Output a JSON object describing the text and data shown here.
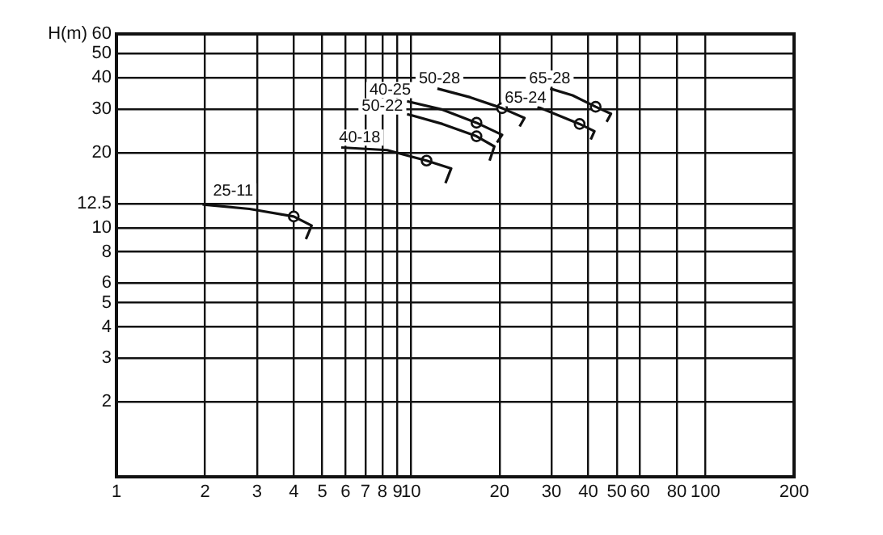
{
  "chart_data": {
    "type": "line",
    "ylabel": "H(m)",
    "log": "xy",
    "grid": true,
    "xlim": [
      1,
      200
    ],
    "xticks": [
      1,
      2,
      3,
      4,
      5,
      6,
      7,
      8,
      9,
      10,
      20,
      30,
      40,
      50,
      60,
      80,
      100,
      200
    ],
    "ylim": [
      1,
      60
    ],
    "yticks": [
      2,
      3,
      4,
      5,
      6,
      8,
      10,
      12.5,
      20,
      30,
      40,
      50,
      60
    ],
    "series": [
      {
        "type": "line",
        "color": "#111111",
        "marker": "none",
        "x": [
          1.96,
          2.83,
          4.0,
          4.6,
          4.4
        ],
        "values": [
          12.4,
          11.9,
          11.1,
          10.2,
          9.0
        ]
      },
      {
        "type": "line",
        "color": "#111111",
        "marker": "none",
        "x": [
          5.8,
          8.3,
          11.3,
          13.7,
          13.1
        ],
        "values": [
          21.0,
          20.5,
          18.6,
          17.3,
          15.1
        ]
      },
      {
        "type": "line",
        "color": "#111111",
        "marker": "none",
        "x": [
          9.7,
          12.8,
          16.7,
          20.4,
          19.6
        ],
        "values": [
          32.2,
          29.8,
          26.4,
          23.6,
          22.0
        ]
      },
      {
        "type": "line",
        "color": "#111111",
        "marker": "none",
        "x": [
          9.7,
          12.8,
          16.7,
          19.2,
          18.5
        ],
        "values": [
          28.6,
          26.1,
          23.3,
          21.2,
          18.6
        ]
      },
      {
        "type": "line",
        "color": "#111111",
        "marker": "none",
        "x": [
          12.3,
          15.9,
          20.4,
          24.3,
          23.4
        ],
        "values": [
          36.2,
          33.4,
          30.2,
          27.6,
          25.5
        ]
      },
      {
        "type": "line",
        "color": "#111111",
        "marker": "none",
        "x": [
          26.9,
          31.8,
          37.4,
          42.0,
          40.8
        ],
        "values": [
          30.6,
          28.2,
          26.1,
          24.4,
          22.6
        ]
      },
      {
        "type": "line",
        "color": "#111111",
        "marker": "none",
        "x": [
          29.7,
          35.4,
          42.4,
          47.8,
          46.2
        ],
        "values": [
          36.2,
          34.0,
          30.6,
          28.7,
          26.6
        ]
      },
      {
        "type": "scatter",
        "color": "#111111",
        "marker": "circle",
        "x": [
          4.0,
          11.3,
          16.7,
          16.7,
          20.4,
          37.4,
          42.4
        ],
        "values": [
          11.1,
          18.6,
          26.4,
          23.3,
          30.2,
          26.1,
          30.6
        ]
      }
    ],
    "annotations": [
      {
        "text": "25-11",
        "x": 2.49,
        "y": 14.0
      },
      {
        "text": "40-18",
        "x": 6.7,
        "y": 23.0
      },
      {
        "text": "40-25",
        "x": 8.5,
        "y": 35.7
      },
      {
        "text": "50-22",
        "x": 8.0,
        "y": 30.7
      },
      {
        "text": "50-28",
        "x": 12.5,
        "y": 39.7
      },
      {
        "text": "65-24",
        "x": 24.5,
        "y": 33.1
      },
      {
        "text": "65-28",
        "x": 29.6,
        "y": 39.7
      }
    ]
  }
}
